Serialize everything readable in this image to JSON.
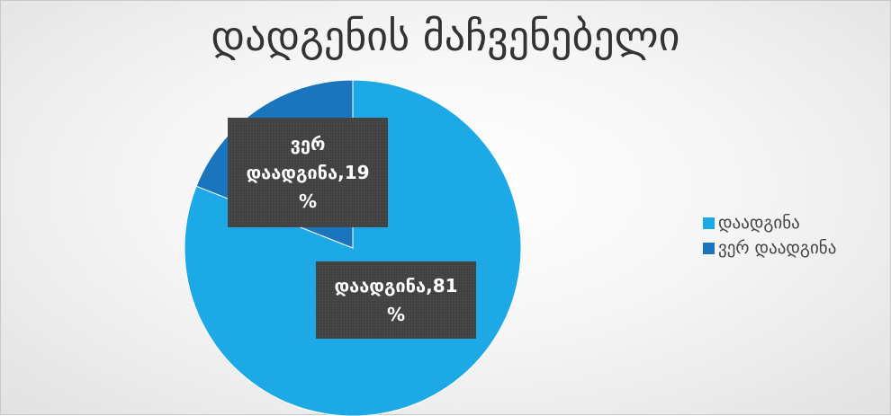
{
  "chart_data": {
    "type": "pie",
    "title": "დადგენის მაჩვენებელი",
    "slices": [
      {
        "name": "დაადგინა",
        "value": 81,
        "color": "#1ca9e6"
      },
      {
        "name": "ვერ დაადგინა",
        "value": 19,
        "color": "#1b75bc"
      }
    ],
    "data_labels": [
      {
        "lines": [
          "ვერ",
          "დაადგინა,19",
          "%"
        ]
      },
      {
        "lines": [
          "დაადგინა,81",
          "%"
        ]
      }
    ],
    "legend": {
      "placement": "right",
      "items": [
        "დაადგინა",
        "ვერ დაადგინა"
      ]
    }
  }
}
